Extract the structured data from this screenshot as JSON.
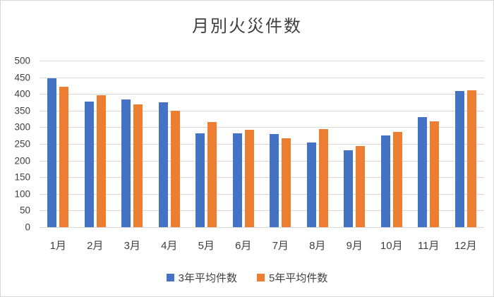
{
  "chart_data": {
    "type": "bar",
    "title": "月別火災件数",
    "categories": [
      "1月",
      "2月",
      "3月",
      "4月",
      "5月",
      "6月",
      "7月",
      "8月",
      "9月",
      "10月",
      "11月",
      "12月"
    ],
    "series": [
      {
        "name": "3年平均件数",
        "color": "#4472C4",
        "values": [
          448,
          377,
          383,
          374,
          281,
          281,
          279,
          255,
          230,
          276,
          330,
          409
        ]
      },
      {
        "name": "5年平均件数",
        "color": "#ED7D31",
        "values": [
          422,
          397,
          368,
          350,
          316,
          292,
          267,
          295,
          243,
          287,
          318,
          411
        ]
      }
    ],
    "xlabel": "",
    "ylabel": "",
    "ylim": [
      0,
      500
    ],
    "yticks": [
      0,
      50,
      100,
      150,
      200,
      250,
      300,
      350,
      400,
      450,
      500
    ],
    "grid": "horizontal",
    "legend_position": "bottom",
    "gridline_color": "#d9d9d9",
    "text_color": "#404040"
  }
}
